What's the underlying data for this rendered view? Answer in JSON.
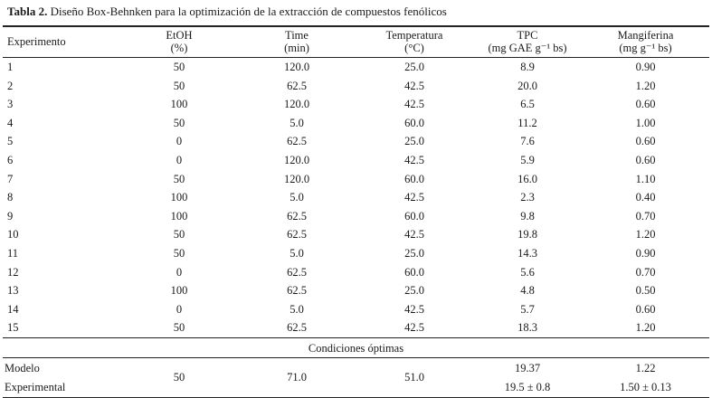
{
  "caption": {
    "label": "Tabla 2.",
    "text": " Diseño Box-Behnken para la optimización de la extracción de compuestos fenólicos"
  },
  "table": {
    "columns": [
      {
        "key": "experimento",
        "name": "Experimento",
        "unit": ""
      },
      {
        "key": "etoh",
        "name": "EtOH",
        "unit": "(%)"
      },
      {
        "key": "time",
        "name": "Time",
        "unit": "(min)"
      },
      {
        "key": "temperatura",
        "name": "Temperatura",
        "unit": "(°C)"
      },
      {
        "key": "tpc",
        "name": "TPC",
        "unit": "(mg GAE g⁻¹ bs)"
      },
      {
        "key": "mangiferina",
        "name": "Mangiferina",
        "unit": "(mg g⁻¹ bs)"
      }
    ],
    "rows": [
      [
        "1",
        "50",
        "120.0",
        "25.0",
        "8.9",
        "0.90"
      ],
      [
        "2",
        "50",
        "62.5",
        "42.5",
        "20.0",
        "1.20"
      ],
      [
        "3",
        "100",
        "120.0",
        "42.5",
        "6.5",
        "0.60"
      ],
      [
        "4",
        "50",
        "5.0",
        "60.0",
        "11.2",
        "1.00"
      ],
      [
        "5",
        "0",
        "62.5",
        "25.0",
        "7.6",
        "0.60"
      ],
      [
        "6",
        "0",
        "120.0",
        "42.5",
        "5.9",
        "0.60"
      ],
      [
        "7",
        "50",
        "120.0",
        "60.0",
        "16.0",
        "1.10"
      ],
      [
        "8",
        "100",
        "5.0",
        "42.5",
        "2.3",
        "0.40"
      ],
      [
        "9",
        "100",
        "62.5",
        "60.0",
        "9.8",
        "0.70"
      ],
      [
        "10",
        "50",
        "62.5",
        "42.5",
        "19.8",
        "1.20"
      ],
      [
        "11",
        "50",
        "5.0",
        "25.0",
        "14.3",
        "0.90"
      ],
      [
        "12",
        "0",
        "62.5",
        "60.0",
        "5.6",
        "0.70"
      ],
      [
        "13",
        "100",
        "62.5",
        "25.0",
        "4.8",
        "0.50"
      ],
      [
        "14",
        "0",
        "5.0",
        "42.5",
        "5.7",
        "0.60"
      ],
      [
        "15",
        "50",
        "62.5",
        "42.5",
        "18.3",
        "1.20"
      ]
    ],
    "optimal": {
      "section_label": "Condiciones óptimas",
      "shared": {
        "etoh": "50",
        "time": "71.0",
        "temperatura": "51.0"
      },
      "rows": [
        {
          "label": "Modelo",
          "tpc": "19.37",
          "mangiferina": "1.22"
        },
        {
          "label": "Experimental",
          "tpc": "19.5 ± 0.8",
          "mangiferina": "1.50 ± 0.13"
        }
      ]
    }
  }
}
